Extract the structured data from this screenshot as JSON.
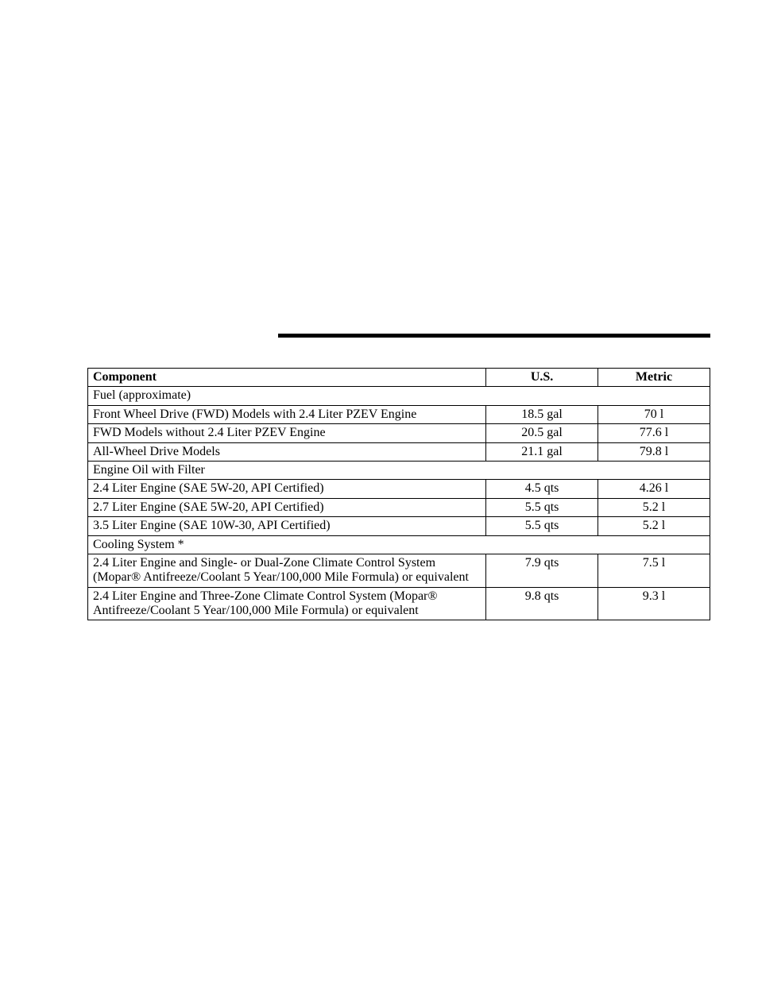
{
  "table": {
    "headers": {
      "component": "Component",
      "us": "U.S.",
      "metric": "Metric"
    },
    "sections": [
      {
        "heading": "Fuel (approximate)",
        "rows": [
          {
            "component": "Front Wheel Drive (FWD) Models with 2.4 Liter PZEV Engine",
            "us": "18.5 gal",
            "metric": "70 l"
          },
          {
            "component": "FWD Models without 2.4 Liter PZEV Engine",
            "us": "20.5 gal",
            "metric": "77.6 l"
          },
          {
            "component": "All-Wheel Drive Models",
            "us": "21.1 gal",
            "metric": "79.8 l"
          }
        ]
      },
      {
        "heading": "Engine Oil with Filter",
        "rows": [
          {
            "component": "2.4 Liter Engine (SAE 5W-20, API Certified)",
            "us": "4.5 qts",
            "metric": "4.26 l"
          },
          {
            "component": "2.7 Liter Engine (SAE 5W-20, API Certified)",
            "us": "5.5 qts",
            "metric": "5.2 l"
          },
          {
            "component": "3.5 Liter Engine (SAE 10W-30, API Certified)",
            "us": "5.5 qts",
            "metric": "5.2 l"
          }
        ]
      },
      {
        "heading": "Cooling System *",
        "rows": [
          {
            "component": "2.4 Liter Engine and Single- or Dual-Zone Climate Control System (Mopar® Antifreeze/Coolant 5 Year/100,000 Mile Formula) or equivalent",
            "us": "7.9 qts",
            "metric": "7.5 l"
          },
          {
            "component": "2.4 Liter Engine and Three-Zone Climate Control System (Mopar® Antifreeze/Coolant 5 Year/100,000 Mile Formula) or equivalent",
            "us": "9.8 qts",
            "metric": "9.3 l"
          }
        ]
      }
    ]
  },
  "colors": {
    "rule": "#000000",
    "border": "#000000",
    "text": "#000000",
    "background": "#ffffff"
  }
}
